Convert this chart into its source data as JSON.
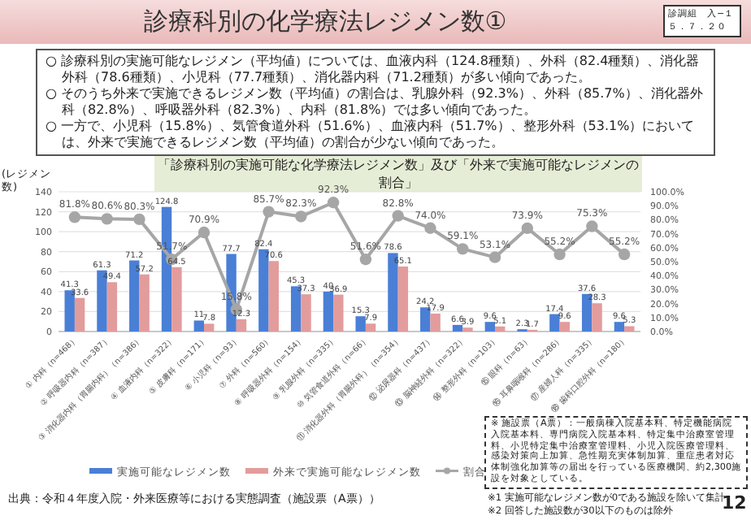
{
  "chart_data": {
    "type": "bar",
    "title": "診療科別の化学療法レジメン数①",
    "subtitle": "「診療科別の実施可能な化学療法レジメン数」及び「外来で実施可能なレジメンの割合」",
    "ylabel": "(レジメン数)",
    "categories": [
      "① 内科（n=468）",
      "② 呼吸器内科（n=387）",
      "③ 消化器内科（胃腸内科）（n=386）",
      "④ 血液内科（n=322）",
      "⑤ 皮膚科（n=171）",
      "⑥ 小児科（n=93）",
      "⑦ 外科（n=560）",
      "⑧ 呼吸器外科（n=154）",
      "⑨ 乳腺外科（n=335）",
      "⑩ 気管食道外科（n=66）",
      "⑪ 消化器外科（胃腸外科）（n=354）",
      "⑫ 泌尿器科（n=437）",
      "⑬ 脳神経外科（n=322）",
      "⑭ 整形外科（n=103）",
      "⑮ 眼科（n=63）",
      "⑯ 耳鼻咽喉科（n=286）",
      "⑰ 産婦人科（n=335）",
      "⑱ 歯科口腔外科（n=180）"
    ],
    "series": [
      {
        "name": "実施可能なレジメン数",
        "color": "#4a7fd6",
        "values": [
          41.3,
          61.3,
          71.2,
          124.8,
          11,
          77.7,
          82.4,
          45.3,
          40,
          15.3,
          78.6,
          24.2,
          6.6,
          9.6,
          2.3,
          17.4,
          37.6,
          9.6
        ]
      },
      {
        "name": "外来で実施可能なレジメン数",
        "color": "#e39c9c",
        "values": [
          33.6,
          49.4,
          57.2,
          64.5,
          7.8,
          12.3,
          70.6,
          37.3,
          36.9,
          7.9,
          65.1,
          17.9,
          3.9,
          5.1,
          1.7,
          9.6,
          28.3,
          5.3
        ]
      },
      {
        "name": "割合",
        "type": "line",
        "axis": "y2",
        "color": "#a6a6a6",
        "marker": "circle",
        "values": [
          81.8,
          80.6,
          80.3,
          51.7,
          70.9,
          15.8,
          85.7,
          82.3,
          92.3,
          51.6,
          82.8,
          74.0,
          59.1,
          53.1,
          73.9,
          55.2,
          75.3,
          55.2
        ],
        "value_labels": [
          "81.8%",
          "80.6%",
          "80.3%",
          "51.7%",
          "70.9%",
          "15.8%",
          "85.7%",
          "82.3%",
          "92.3%",
          "51.6%",
          "82.8%",
          "74.0%",
          "59.1%",
          "53.1%",
          "73.9%",
          "55.2%",
          "75.3%",
          "55.2%"
        ]
      }
    ],
    "ylim": [
      0,
      140
    ],
    "yticks": [
      0,
      20,
      40,
      60,
      80,
      100,
      120,
      140
    ],
    "y2lim": [
      0,
      100
    ],
    "y2ticks": [
      {
        "value": 0,
        "label": "0.0%"
      },
      {
        "value": 10,
        "label": "10.0%"
      },
      {
        "value": 20,
        "label": "20.0%"
      },
      {
        "value": 30,
        "label": "30.0%"
      },
      {
        "value": 40,
        "label": "40.0%"
      },
      {
        "value": 50,
        "label": "50.0%"
      },
      {
        "value": 60,
        "label": "60.0%"
      },
      {
        "value": 70,
        "label": "70.0%"
      },
      {
        "value": 80,
        "label": "80.0%"
      },
      {
        "value": 90,
        "label": "90.0%"
      },
      {
        "value": 100,
        "label": "100.0%"
      }
    ],
    "grid": "y",
    "legend": "bottom",
    "data_labels": true,
    "annotations": [
      "診調組　入−１",
      "５．７．２０",
      "○ 診療科別の実施可能なレジメン（平均値）については、血液内科（124.8種類）、外科（82.4種類）、消化器外科（78.6種類）、小児科（77.7種類）、消化器内科（71.2種類）が多い傾向であった。",
      "○ そのうち外来で実施できるレジメン数（平均値）の割合は、乳腺外科（92.3%）、外科（85.7%）、消化器外科（82.8%）、呼吸器外科（82.3%）、内科（81.8%）では多い傾向であった。",
      "○ 一方で、小児科（15.8%）、気管食道外科（51.6%）、血液内科（51.7%）、整形外科（53.1%）においては、外来で実施できるレジメン数（平均値）の割合が少ない傾向であった。",
      "※ 施設票（A票）：一般病棟入院基本料、特定機能病院入院基本料、専門病院入院基本料、特定集中治療室管理料、小児特定集中治療室管理料、小児入院医療管理料、感染対策向上加算、急性期充実体制加算、重症患者対応体制強化加算等の届出を行っている医療機関、約2,300施設を対象としている。",
      "※1 実施可能なレジメン数が0である施設を除いて集計",
      "※2 回答した施設数が30以下のものは除外",
      "出典：令和４年度入院・外来医療等における実態調査（施設票（A票））",
      "12"
    ]
  }
}
